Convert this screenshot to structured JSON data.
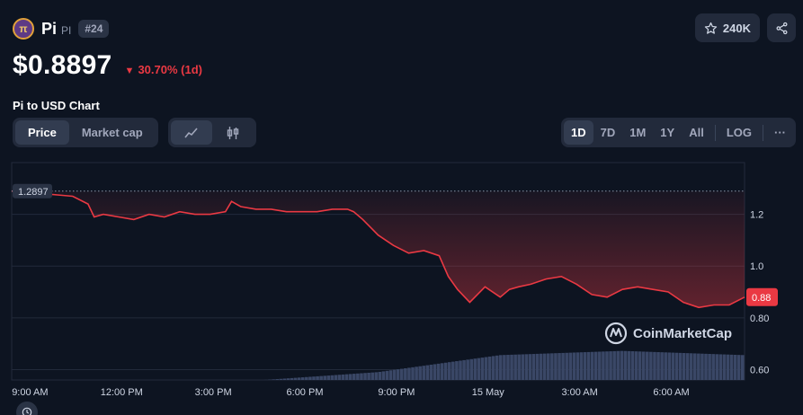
{
  "coin": {
    "name": "Pi",
    "symbol": "PI",
    "rank": "#24",
    "logo_glyph": "π"
  },
  "price": {
    "value": "$0.8897",
    "change": "30.70% (1d)",
    "direction": "down"
  },
  "actions": {
    "watchlist_count": "240K"
  },
  "chart_title": "Pi to USD Chart",
  "controls": {
    "metric_tabs": [
      "Price",
      "Market cap"
    ],
    "active_metric": "Price",
    "chart_types": [
      "line-chart-icon",
      "candlestick-icon"
    ],
    "ranges": [
      "1D",
      "7D",
      "1M",
      "1Y",
      "All"
    ],
    "active_range": "1D",
    "log_label": "LOG",
    "more_label": "···"
  },
  "watermark": "CoinMarketCap",
  "colors": {
    "background": "#0d1421",
    "line": "#ea3943",
    "volume": "#3a4766",
    "accent": "#ea3943"
  },
  "chart_data": {
    "type": "line",
    "title": "",
    "x_tick_labels": [
      "9:00 AM",
      "12:00 PM",
      "3:00 PM",
      "6:00 PM",
      "9:00 PM",
      "15 May",
      "3:00 AM",
      "6:00 AM"
    ],
    "y_tick_labels": [
      "1.2",
      "1.0",
      "0.80",
      "0.60"
    ],
    "ylim": [
      0.56,
      1.4
    ],
    "reference_line": {
      "value": 1.2897,
      "label": "1.2897"
    },
    "current_value": {
      "value": 0.88,
      "label": "0.88"
    },
    "series": [
      {
        "x_hours": [
          0,
          0.5,
          1,
          1.5,
          2,
          2.5,
          2.7,
          3,
          3.5,
          4,
          4.5,
          5,
          5.5,
          6,
          6.5,
          7,
          7.2,
          7.5,
          8,
          8.5,
          9,
          9.5,
          10,
          10.5,
          11,
          11.2,
          11.5,
          12,
          12.5,
          13,
          13.5,
          14,
          14.3,
          14.6,
          15,
          15.5,
          16,
          16.3,
          16.6,
          17,
          17.5,
          18,
          18.5,
          19,
          19.5,
          20,
          20.5,
          21,
          21.5,
          22,
          22.5,
          23,
          23.5,
          24
        ],
        "values": [
          1.29,
          1.285,
          1.28,
          1.275,
          1.27,
          1.24,
          1.19,
          1.2,
          1.19,
          1.18,
          1.2,
          1.19,
          1.21,
          1.2,
          1.2,
          1.21,
          1.25,
          1.23,
          1.22,
          1.22,
          1.21,
          1.21,
          1.21,
          1.22,
          1.22,
          1.21,
          1.18,
          1.12,
          1.08,
          1.05,
          1.06,
          1.04,
          0.96,
          0.91,
          0.86,
          0.92,
          0.88,
          0.91,
          0.92,
          0.93,
          0.95,
          0.96,
          0.93,
          0.89,
          0.88,
          0.91,
          0.92,
          0.91,
          0.9,
          0.86,
          0.84,
          0.85,
          0.85,
          0.88
        ]
      }
    ],
    "volume": {
      "x_hours": [
        0,
        4,
        8,
        12,
        16,
        20,
        24
      ],
      "values": [
        0.65,
        0.66,
        0.68,
        0.72,
        0.8,
        0.82,
        0.8
      ]
    }
  }
}
